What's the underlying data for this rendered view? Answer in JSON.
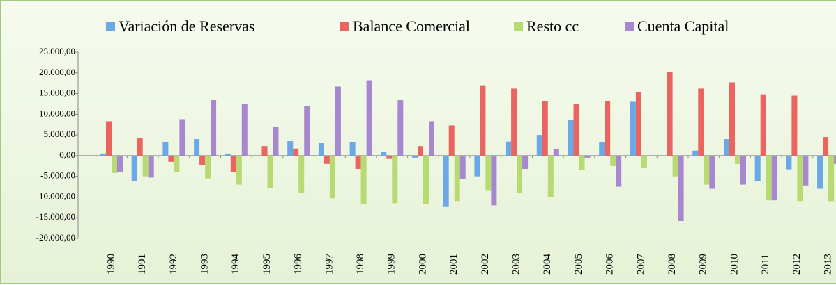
{
  "chart_data": {
    "type": "bar",
    "categories": [
      "1990",
      "1991",
      "1992",
      "1993",
      "1994",
      "1995",
      "1996",
      "1997",
      "1998",
      "1999",
      "2000",
      "2001",
      "2002",
      "2003",
      "2004",
      "2005",
      "2006",
      "2007",
      "2008",
      "2009",
      "2010",
      "2011",
      "2012",
      "2013"
    ],
    "series": [
      {
        "name": "Variación de Reservas",
        "color": "#6aa8e8",
        "values": [
          500,
          -6200,
          3200,
          4000,
          500,
          -100,
          3500,
          3000,
          3200,
          1000,
          -500,
          -12400,
          -5000,
          3400,
          5000,
          8600,
          3200,
          13000,
          0,
          1200,
          4000,
          -6200,
          -3300,
          -8000
        ]
      },
      {
        "name": "Balance Comercial",
        "color": "#ea6460",
        "values": [
          8300,
          4300,
          -1500,
          -2200,
          -4000,
          2300,
          1700,
          -2000,
          -3200,
          -800,
          2300,
          7300,
          17000,
          16200,
          13200,
          12500,
          13200,
          15300,
          20200,
          16200,
          17700,
          14800,
          14500,
          4500
        ]
      },
      {
        "name": "Resto cc",
        "color": "#b7da72",
        "values": [
          -4200,
          -5000,
          -4000,
          -5500,
          -7000,
          -7800,
          -9000,
          -10300,
          -11700,
          -11500,
          -11600,
          -11000,
          -8500,
          -9000,
          -10000,
          -3500,
          -2500,
          -3000,
          -5000,
          -7000,
          -2000,
          -10800,
          -11000,
          -11000
        ]
      },
      {
        "name": "Cuenta Capital",
        "color": "#a687d0",
        "values": [
          -4000,
          -5300,
          8800,
          13400,
          12500,
          7000,
          12000,
          16700,
          18200,
          13400,
          8300,
          -5600,
          -12000,
          -3200,
          1600,
          -500,
          -7500,
          0,
          -15800,
          -8000,
          -7000,
          -10800,
          -7200,
          -2000
        ]
      }
    ],
    "ylim": [
      -20000,
      25000
    ],
    "yticks": [
      {
        "value": -20000,
        "label": "-20.000,00"
      },
      {
        "value": -15000,
        "label": "-15.000,00"
      },
      {
        "value": -10000,
        "label": "-10.000,00"
      },
      {
        "value": -5000,
        "label": "-5.000,00"
      },
      {
        "value": 0,
        "label": "0,00"
      },
      {
        "value": 5000,
        "label": "5.000,00"
      },
      {
        "value": 10000,
        "label": "10.000,00"
      },
      {
        "value": 15000,
        "label": "15.000,00"
      },
      {
        "value": 20000,
        "label": "20.000,00"
      },
      {
        "value": 25000,
        "label": "25.000,00"
      }
    ],
    "legend": "top"
  }
}
